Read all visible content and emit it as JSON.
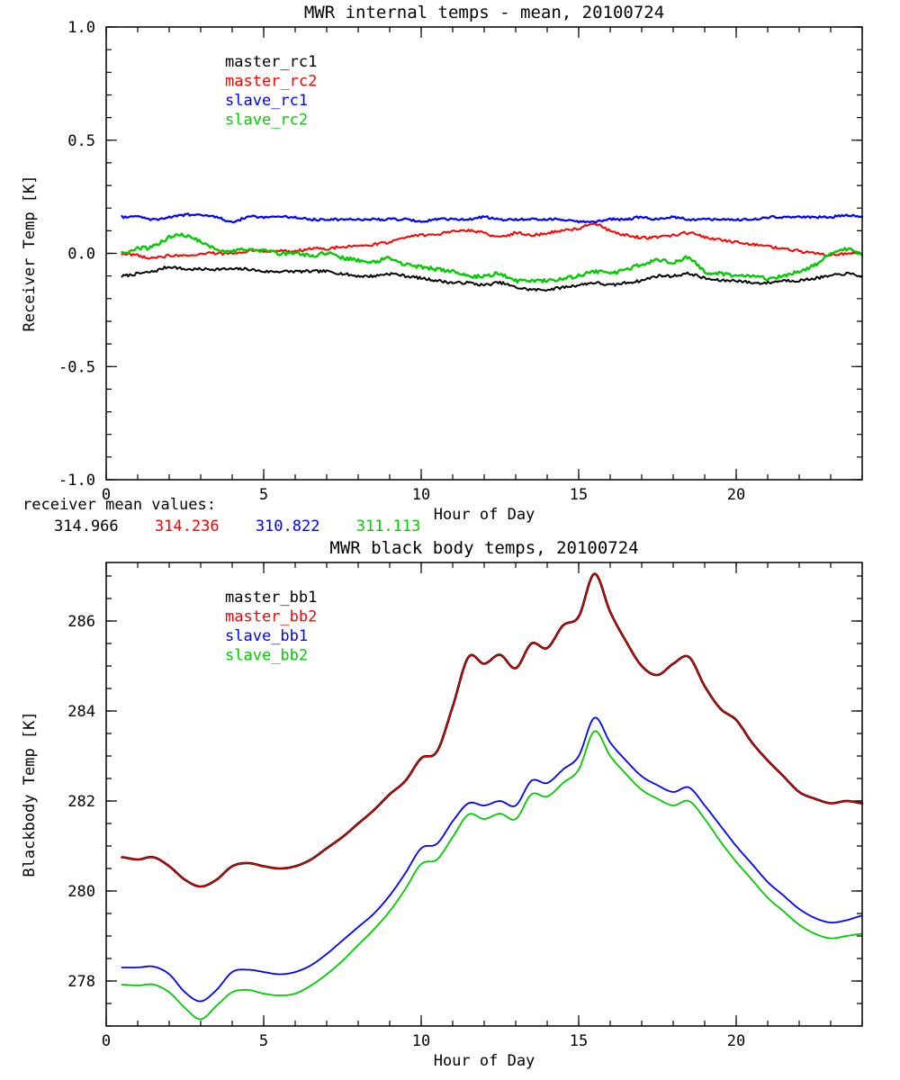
{
  "page": {
    "background": "#ffffff"
  },
  "mean_values": {
    "label": "receiver mean values:",
    "values": [
      {
        "text": "314.966",
        "color": "#000000"
      },
      {
        "text": "314.236",
        "color": "#ff0000"
      },
      {
        "text": "310.822",
        "color": "#0000ff"
      },
      {
        "text": "311.113",
        "color": "#00cc00"
      }
    ]
  },
  "chart_data": [
    {
      "type": "line",
      "title": "MWR internal temps - mean, 20100724",
      "xlabel": "Hour of Day",
      "ylabel": "Receiver Temp [K]",
      "xlim": [
        0,
        24
      ],
      "ylim": [
        -1.0,
        1.0
      ],
      "xticks": [
        0,
        5,
        10,
        15,
        20
      ],
      "xtick_labels": [
        "0",
        "5",
        "10",
        "15",
        "20"
      ],
      "yticks": [
        -1.0,
        -0.5,
        0.0,
        0.5,
        1.0
      ],
      "ytick_labels": [
        "-1.0",
        "-0.5",
        "0.0",
        "0.5",
        "1.0"
      ],
      "x_minor": 1,
      "y_minor": 0.1,
      "grid": false,
      "legend_position": "upper-left-inside",
      "x": [
        0.5,
        1,
        1.5,
        2,
        2.5,
        3,
        3.5,
        4,
        4.5,
        5,
        5.5,
        6,
        6.5,
        7,
        7.5,
        8,
        8.5,
        9,
        9.5,
        10,
        10.5,
        11,
        11.5,
        12,
        12.5,
        13,
        13.5,
        14,
        14.5,
        15,
        15.5,
        16,
        16.5,
        17,
        17.5,
        18,
        18.5,
        19,
        19.5,
        20,
        20.5,
        21,
        21.5,
        22,
        22.5,
        23,
        23.5,
        24
      ],
      "series": [
        {
          "name": "master_rc1",
          "color": "#000000",
          "width": 2,
          "noise": 0.006,
          "values": [
            -0.1,
            -0.09,
            -0.08,
            -0.06,
            -0.07,
            -0.07,
            -0.07,
            -0.07,
            -0.07,
            -0.08,
            -0.08,
            -0.08,
            -0.08,
            -0.08,
            -0.09,
            -0.1,
            -0.1,
            -0.09,
            -0.1,
            -0.11,
            -0.12,
            -0.13,
            -0.13,
            -0.14,
            -0.13,
            -0.15,
            -0.16,
            -0.16,
            -0.15,
            -0.14,
            -0.13,
            -0.14,
            -0.13,
            -0.12,
            -0.1,
            -0.1,
            -0.09,
            -0.11,
            -0.12,
            -0.12,
            -0.13,
            -0.13,
            -0.12,
            -0.12,
            -0.11,
            -0.1,
            -0.09,
            -0.1
          ]
        },
        {
          "name": "master_rc2",
          "color": "#ff0000",
          "width": 2,
          "noise": 0.006,
          "values": [
            0.0,
            -0.01,
            -0.02,
            -0.01,
            -0.01,
            0.0,
            0.0,
            0.0,
            0.01,
            0.01,
            0.01,
            0.01,
            0.02,
            0.02,
            0.03,
            0.03,
            0.04,
            0.05,
            0.07,
            0.08,
            0.08,
            0.1,
            0.1,
            0.09,
            0.07,
            0.09,
            0.08,
            0.09,
            0.1,
            0.11,
            0.13,
            0.1,
            0.08,
            0.07,
            0.07,
            0.08,
            0.09,
            0.07,
            0.06,
            0.05,
            0.04,
            0.03,
            0.02,
            0.01,
            0.0,
            -0.01,
            0.0,
            0.0
          ]
        },
        {
          "name": "slave_rc1",
          "color": "#0000ff",
          "width": 2.2,
          "noise": 0.005,
          "values": [
            0.16,
            0.16,
            0.15,
            0.16,
            0.17,
            0.17,
            0.16,
            0.14,
            0.16,
            0.16,
            0.16,
            0.16,
            0.15,
            0.15,
            0.15,
            0.15,
            0.15,
            0.15,
            0.15,
            0.14,
            0.15,
            0.15,
            0.15,
            0.16,
            0.15,
            0.15,
            0.15,
            0.15,
            0.15,
            0.14,
            0.14,
            0.15,
            0.15,
            0.16,
            0.15,
            0.16,
            0.15,
            0.15,
            0.15,
            0.15,
            0.15,
            0.16,
            0.16,
            0.16,
            0.16,
            0.16,
            0.17,
            0.16
          ]
        },
        {
          "name": "slave_rc2",
          "color": "#00cc00",
          "width": 2.4,
          "noise": 0.008,
          "values": [
            0.0,
            0.02,
            0.03,
            0.07,
            0.08,
            0.05,
            0.02,
            0.01,
            0.02,
            0.01,
            0.0,
            0.0,
            -0.01,
            0.0,
            -0.02,
            -0.03,
            -0.04,
            -0.02,
            -0.05,
            -0.06,
            -0.07,
            -0.08,
            -0.1,
            -0.1,
            -0.09,
            -0.12,
            -0.12,
            -0.12,
            -0.11,
            -0.1,
            -0.08,
            -0.09,
            -0.07,
            -0.05,
            -0.03,
            -0.04,
            -0.02,
            -0.08,
            -0.09,
            -0.1,
            -0.1,
            -0.11,
            -0.1,
            -0.08,
            -0.05,
            0.0,
            0.02,
            -0.01
          ]
        }
      ]
    },
    {
      "type": "line",
      "title": "MWR black body temps, 20100724",
      "xlabel": "Hour of Day",
      "ylabel": "Blackbody Temp [K]",
      "xlim": [
        0,
        24
      ],
      "ylim": [
        277.0,
        287.3
      ],
      "xticks": [
        0,
        5,
        10,
        15,
        20
      ],
      "xtick_labels": [
        "0",
        "5",
        "10",
        "15",
        "20"
      ],
      "yticks": [
        278,
        280,
        282,
        284,
        286
      ],
      "ytick_labels": [
        "278",
        "280",
        "282",
        "284",
        "286"
      ],
      "x_minor": 1,
      "y_minor": 0.5,
      "grid": false,
      "legend_position": "upper-left-inside",
      "x": [
        0.5,
        1,
        1.5,
        2,
        2.5,
        3,
        3.5,
        4,
        4.5,
        5,
        5.5,
        6,
        6.5,
        7,
        7.5,
        8,
        8.5,
        9,
        9.5,
        10,
        10.5,
        11,
        11.5,
        12,
        12.5,
        13,
        13.5,
        14,
        14.5,
        15,
        15.5,
        16,
        16.5,
        17,
        17.5,
        18,
        18.5,
        19,
        19.5,
        20,
        20.5,
        21,
        21.5,
        22,
        22.5,
        23,
        23.5,
        24
      ],
      "series": [
        {
          "name": "master_bb1",
          "color": "#000000",
          "width": 2.6,
          "noise": 0,
          "values": [
            280.75,
            280.7,
            280.75,
            280.55,
            280.25,
            280.1,
            280.25,
            280.55,
            280.62,
            280.55,
            280.5,
            280.55,
            280.7,
            280.95,
            281.2,
            281.5,
            281.8,
            282.15,
            282.45,
            282.95,
            283.1,
            284.1,
            285.2,
            285.05,
            285.25,
            284.95,
            285.5,
            285.4,
            285.9,
            286.1,
            287.05,
            286.2,
            285.55,
            285.0,
            284.8,
            285.05,
            285.2,
            284.55,
            284.05,
            283.8,
            283.3,
            282.9,
            282.55,
            282.2,
            282.05,
            281.95,
            282.0,
            281.95
          ]
        },
        {
          "name": "master_bb2",
          "color": "#ff0000",
          "width": 1.4,
          "noise": 0,
          "opacity": 0.95,
          "values": [
            280.75,
            280.7,
            280.75,
            280.55,
            280.25,
            280.1,
            280.25,
            280.55,
            280.62,
            280.55,
            280.5,
            280.55,
            280.7,
            280.95,
            281.2,
            281.5,
            281.8,
            282.15,
            282.45,
            282.95,
            283.1,
            284.1,
            285.2,
            285.05,
            285.25,
            284.95,
            285.5,
            285.4,
            285.9,
            286.1,
            287.05,
            286.2,
            285.55,
            285.0,
            284.8,
            285.05,
            285.2,
            284.55,
            284.05,
            283.8,
            283.3,
            282.9,
            282.55,
            282.2,
            282.05,
            281.95,
            282.0,
            281.95
          ]
        },
        {
          "name": "slave_bb1",
          "color": "#0000ff",
          "width": 1.8,
          "noise": 0,
          "values": [
            278.3,
            278.3,
            278.32,
            278.15,
            277.75,
            277.55,
            277.8,
            278.2,
            278.25,
            278.2,
            278.15,
            278.2,
            278.35,
            278.6,
            278.9,
            279.2,
            279.5,
            279.9,
            280.4,
            280.95,
            281.05,
            281.55,
            281.95,
            281.9,
            282.0,
            281.9,
            282.45,
            282.4,
            282.7,
            283.0,
            283.85,
            283.3,
            282.9,
            282.55,
            282.35,
            282.2,
            282.3,
            281.9,
            281.45,
            281.0,
            280.6,
            280.2,
            279.9,
            279.6,
            279.4,
            279.3,
            279.35,
            279.45
          ]
        },
        {
          "name": "slave_bb2",
          "color": "#00cc00",
          "width": 1.8,
          "noise": 0,
          "values": [
            277.92,
            277.9,
            277.92,
            277.75,
            277.4,
            277.15,
            277.45,
            277.75,
            277.8,
            277.72,
            277.68,
            277.72,
            277.9,
            278.15,
            278.45,
            278.8,
            279.15,
            279.55,
            280.05,
            280.6,
            280.7,
            281.2,
            281.7,
            281.6,
            281.72,
            281.6,
            282.15,
            282.1,
            282.4,
            282.7,
            283.55,
            283.0,
            282.6,
            282.25,
            282.05,
            281.9,
            282.0,
            281.6,
            281.1,
            280.65,
            280.25,
            279.85,
            279.55,
            279.25,
            279.05,
            278.95,
            279.0,
            279.05
          ]
        }
      ]
    }
  ]
}
